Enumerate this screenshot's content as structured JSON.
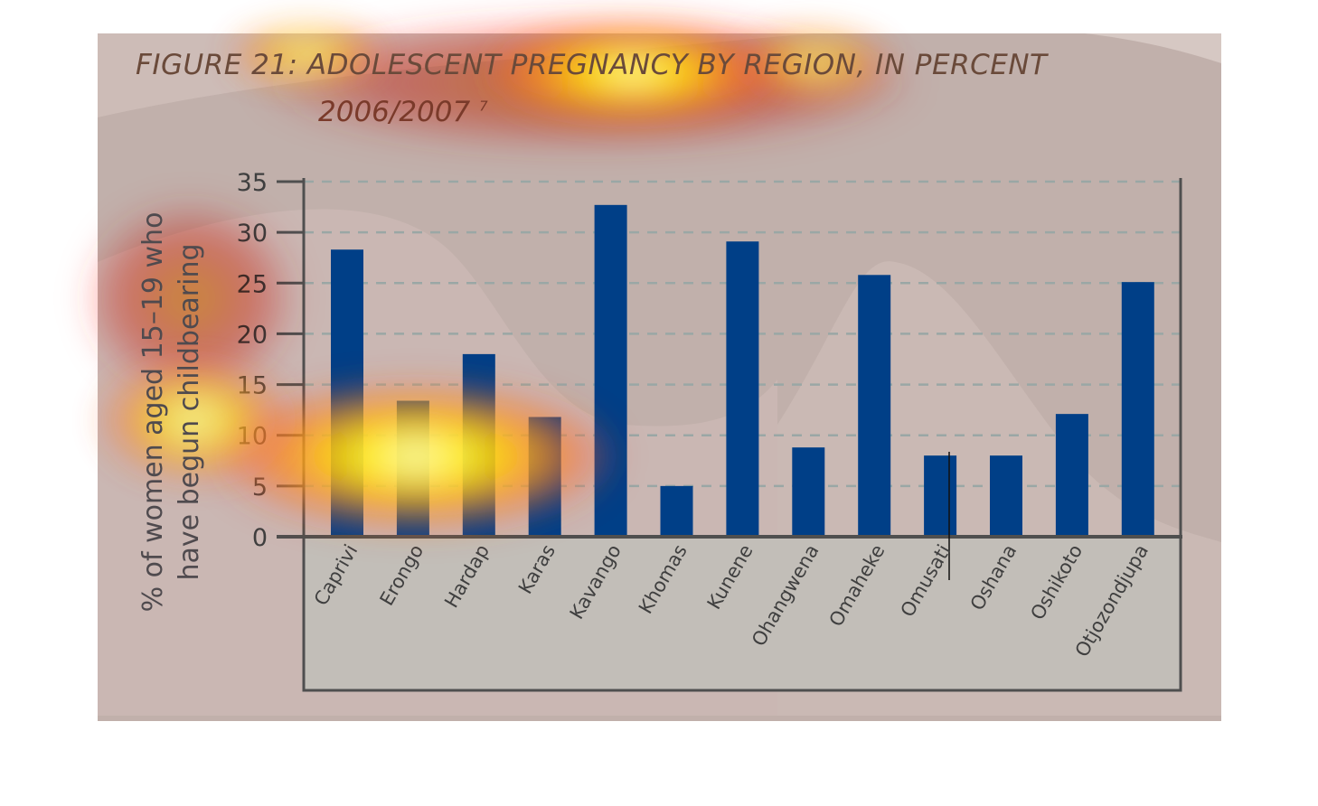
{
  "chart_data": {
    "type": "bar",
    "title": "FIGURE 21: ADOLESCENT PREGNANCY BY REGION, IN PERCENT",
    "subtitle": "2006/2007",
    "subtitle_note": "7",
    "xlabel": "",
    "ylabel_lines": [
      "% of women aged 15–19 who",
      "have begun childbearing"
    ],
    "ylim": [
      0,
      35
    ],
    "yticks": [
      0,
      5,
      10,
      15,
      20,
      25,
      30,
      35
    ],
    "grid": true,
    "categories": [
      "Caprivi",
      "Erongo",
      "Hardap",
      "Karas",
      "Kavango",
      "Khomas",
      "Kunene",
      "Ohangwena",
      "Omaheke",
      "Omusati",
      "Oshana",
      "Oshikoto",
      "Otjozondjupa"
    ],
    "values": [
      28.3,
      13.4,
      18.0,
      11.8,
      32.7,
      5.0,
      29.1,
      8.8,
      25.8,
      8.0,
      8.0,
      12.1,
      25.1
    ],
    "bar_color": "#003f87"
  }
}
